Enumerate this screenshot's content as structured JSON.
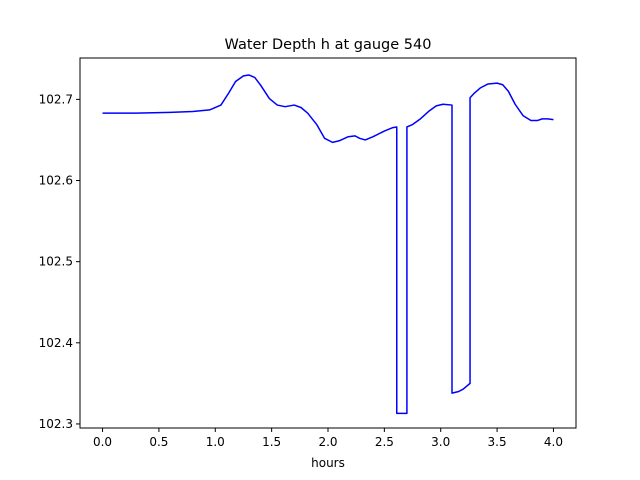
{
  "chart_data": {
    "type": "line",
    "title": "Water Depth h at gauge 540",
    "xlabel": "hours",
    "ylabel": "",
    "xlim": [
      -0.2,
      4.2
    ],
    "ylim": [
      102.295,
      102.751
    ],
    "xticks": [
      0.0,
      0.5,
      1.0,
      1.5,
      2.0,
      2.5,
      3.0,
      3.5,
      4.0
    ],
    "xtick_labels": [
      "0.0",
      "0.5",
      "1.0",
      "1.5",
      "2.0",
      "2.5",
      "3.0",
      "3.5",
      "4.0"
    ],
    "yticks": [
      102.3,
      102.4,
      102.5,
      102.6,
      102.7
    ],
    "ytick_labels": [
      "102.3",
      "102.4",
      "102.5",
      "102.6",
      "102.7"
    ],
    "grid": false,
    "series": [
      {
        "color": "#0000ff",
        "x": [
          0.0,
          0.3,
          0.6,
          0.8,
          0.95,
          1.05,
          1.12,
          1.18,
          1.25,
          1.3,
          1.35,
          1.4,
          1.48,
          1.55,
          1.62,
          1.7,
          1.76,
          1.82,
          1.9,
          1.97,
          2.04,
          2.1,
          2.18,
          2.24,
          2.28,
          2.33,
          2.4,
          2.5,
          2.57,
          2.61,
          2.61,
          2.66,
          2.7,
          2.7,
          2.75,
          2.82,
          2.9,
          2.96,
          3.02,
          3.1,
          3.1,
          3.16,
          3.2,
          3.26,
          3.26,
          3.3,
          3.35,
          3.42,
          3.5,
          3.55,
          3.6,
          3.66,
          3.73,
          3.8,
          3.86,
          3.9,
          3.95,
          4.0
        ],
        "y": [
          102.683,
          102.683,
          102.684,
          102.685,
          102.687,
          102.693,
          102.708,
          102.722,
          102.729,
          102.73,
          102.727,
          102.718,
          102.701,
          102.693,
          102.691,
          102.693,
          102.69,
          102.683,
          102.669,
          102.652,
          102.647,
          102.649,
          102.654,
          102.655,
          102.652,
          102.65,
          102.654,
          102.661,
          102.665,
          102.666,
          102.313,
          102.313,
          102.313,
          102.666,
          102.669,
          102.676,
          102.686,
          102.692,
          102.694,
          102.693,
          102.338,
          102.34,
          102.343,
          102.35,
          102.702,
          102.708,
          102.714,
          102.719,
          102.72,
          102.718,
          102.71,
          102.694,
          102.68,
          102.674,
          102.674,
          102.676,
          102.676,
          102.675
        ]
      }
    ]
  }
}
